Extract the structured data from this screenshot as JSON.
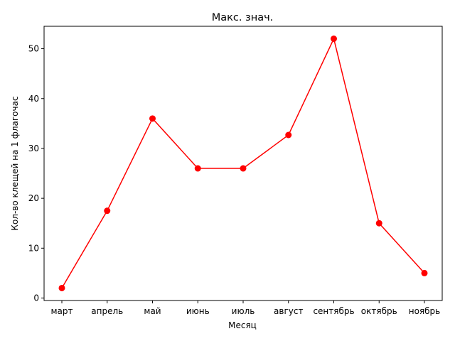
{
  "chart_data": {
    "type": "line",
    "title": "Макс. знач.",
    "xlabel": "Месяц",
    "ylabel": "Кол-во клещей на 1 флагочас",
    "categories": [
      "март",
      "апрель",
      "май",
      "июнь",
      "июль",
      "август",
      "сентябрь",
      "октябрь",
      "ноябрь"
    ],
    "series": [
      {
        "values": [
          2,
          17.5,
          36,
          26,
          26,
          32.7,
          52,
          15,
          5
        ],
        "color": "#ff0000",
        "marker": "circle"
      }
    ],
    "ylim": [
      -0.5,
      54.5
    ],
    "yticks": [
      0,
      10,
      20,
      30,
      40,
      50
    ],
    "grid": false,
    "legend": "none"
  }
}
